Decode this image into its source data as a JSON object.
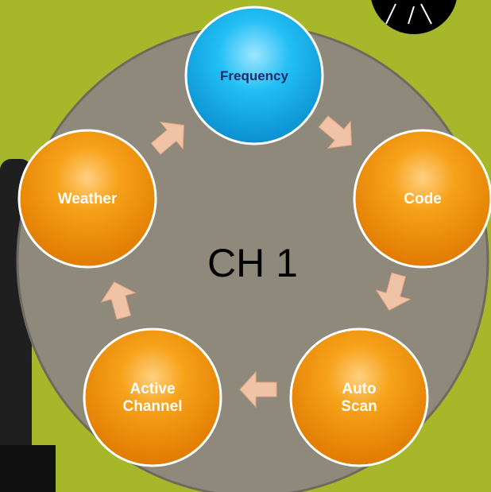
{
  "center_label": "CH 1",
  "nodes": [
    {
      "lines": [
        "Frequency"
      ]
    },
    {
      "lines": [
        "Code"
      ]
    },
    {
      "lines": [
        "Auto",
        "Scan"
      ]
    },
    {
      "lines": [
        "Active",
        "Channel"
      ]
    },
    {
      "lines": [
        "Weather"
      ]
    }
  ]
}
